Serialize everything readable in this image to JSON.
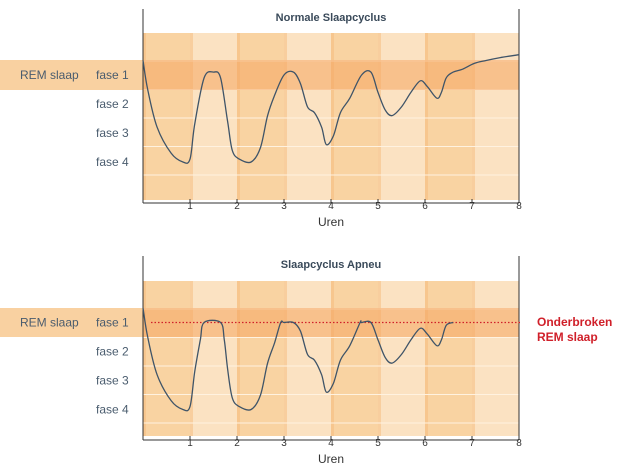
{
  "colors": {
    "band_light": "#fbe2c2",
    "band_dark": "#f9d3a2",
    "rem_band": "#f6a560",
    "rem_label_bg": "#f9cf9c",
    "curve": "#3f5468",
    "axis": "#333333",
    "annotation": "#d0202a"
  },
  "chart_data": [
    {
      "type": "line",
      "title": "Normale Slaapcyclus",
      "xlabel": "Uren",
      "xlim": [
        0,
        8
      ],
      "x_ticks": [
        "1",
        "2",
        "3",
        "4",
        "5",
        "6",
        "7",
        "8"
      ],
      "y_categories": [
        "fase 1",
        "fase 2",
        "fase 3",
        "fase 4"
      ],
      "rem_label": "REM slaap",
      "ylim": [
        5,
        0.3
      ],
      "series": [
        {
          "x": [
            0,
            0.1,
            0.3,
            0.6,
            0.85,
            1.0,
            1.1,
            1.3,
            1.5,
            1.65,
            1.8,
            1.9,
            2.05,
            2.3,
            2.5,
            2.65,
            2.8,
            3.0,
            3.2,
            3.35,
            3.5,
            3.65,
            3.8,
            3.9,
            4.05,
            4.2,
            4.4,
            4.65,
            4.85,
            5.0,
            5.15,
            5.3,
            5.5,
            5.7,
            5.9,
            6.05,
            6.25,
            6.35,
            6.45,
            6.6,
            6.8,
            7.05,
            7.3,
            7.6,
            8.0
          ],
          "y": [
            0.5,
            1.5,
            2.8,
            3.7,
            4.0,
            3.9,
            2.7,
            1.1,
            0.9,
            1.1,
            2.6,
            3.6,
            3.9,
            4.0,
            3.5,
            2.4,
            1.7,
            1.0,
            0.9,
            1.3,
            2.1,
            2.3,
            2.8,
            3.4,
            3.1,
            2.3,
            1.8,
            1.0,
            0.9,
            1.6,
            2.2,
            2.4,
            2.1,
            1.6,
            1.2,
            1.4,
            1.8,
            1.6,
            1.1,
            0.9,
            0.8,
            0.6,
            0.5,
            0.4,
            0.3
          ]
        }
      ]
    },
    {
      "type": "line",
      "title": "Slaapcyclus Apneu",
      "xlabel": "Uren",
      "xlim": [
        0,
        8
      ],
      "x_ticks": [
        "1",
        "2",
        "3",
        "4",
        "5",
        "6",
        "7",
        "8"
      ],
      "y_categories": [
        "fase 1",
        "fase 2",
        "fase 3",
        "fase 4"
      ],
      "rem_label": "REM slaap",
      "ylim": [
        5,
        0.3
      ],
      "series": [
        {
          "x": [
            0,
            0.1,
            0.3,
            0.6,
            0.85,
            1.0,
            1.1,
            1.22,
            1.3,
            1.65,
            1.73,
            1.8,
            1.9,
            2.05,
            2.3,
            2.5,
            2.65,
            2.8,
            2.93,
            3.0,
            3.2,
            3.35,
            3.5,
            3.65,
            3.8,
            3.9,
            4.05,
            4.2,
            4.4,
            4.62,
            4.65,
            4.85,
            5.0,
            5.15,
            5.3,
            5.5,
            5.7,
            5.9,
            6.05,
            6.25,
            6.35,
            6.45,
            6.6
          ],
          "y": [
            0.5,
            1.5,
            2.8,
            3.7,
            4.0,
            3.9,
            2.7,
            1.6,
            1.0,
            1.0,
            1.6,
            2.6,
            3.6,
            3.9,
            4.0,
            3.5,
            2.4,
            1.7,
            1.0,
            1.0,
            1.0,
            1.3,
            2.1,
            2.3,
            2.8,
            3.4,
            3.1,
            2.3,
            1.8,
            1.0,
            1.0,
            1.0,
            1.6,
            2.2,
            2.4,
            2.1,
            1.6,
            1.2,
            1.4,
            1.8,
            1.6,
            1.1,
            1.0
          ]
        }
      ],
      "rem_line_y": 1.0,
      "annotation": [
        "Onderbroken",
        "REM slaap"
      ]
    }
  ]
}
